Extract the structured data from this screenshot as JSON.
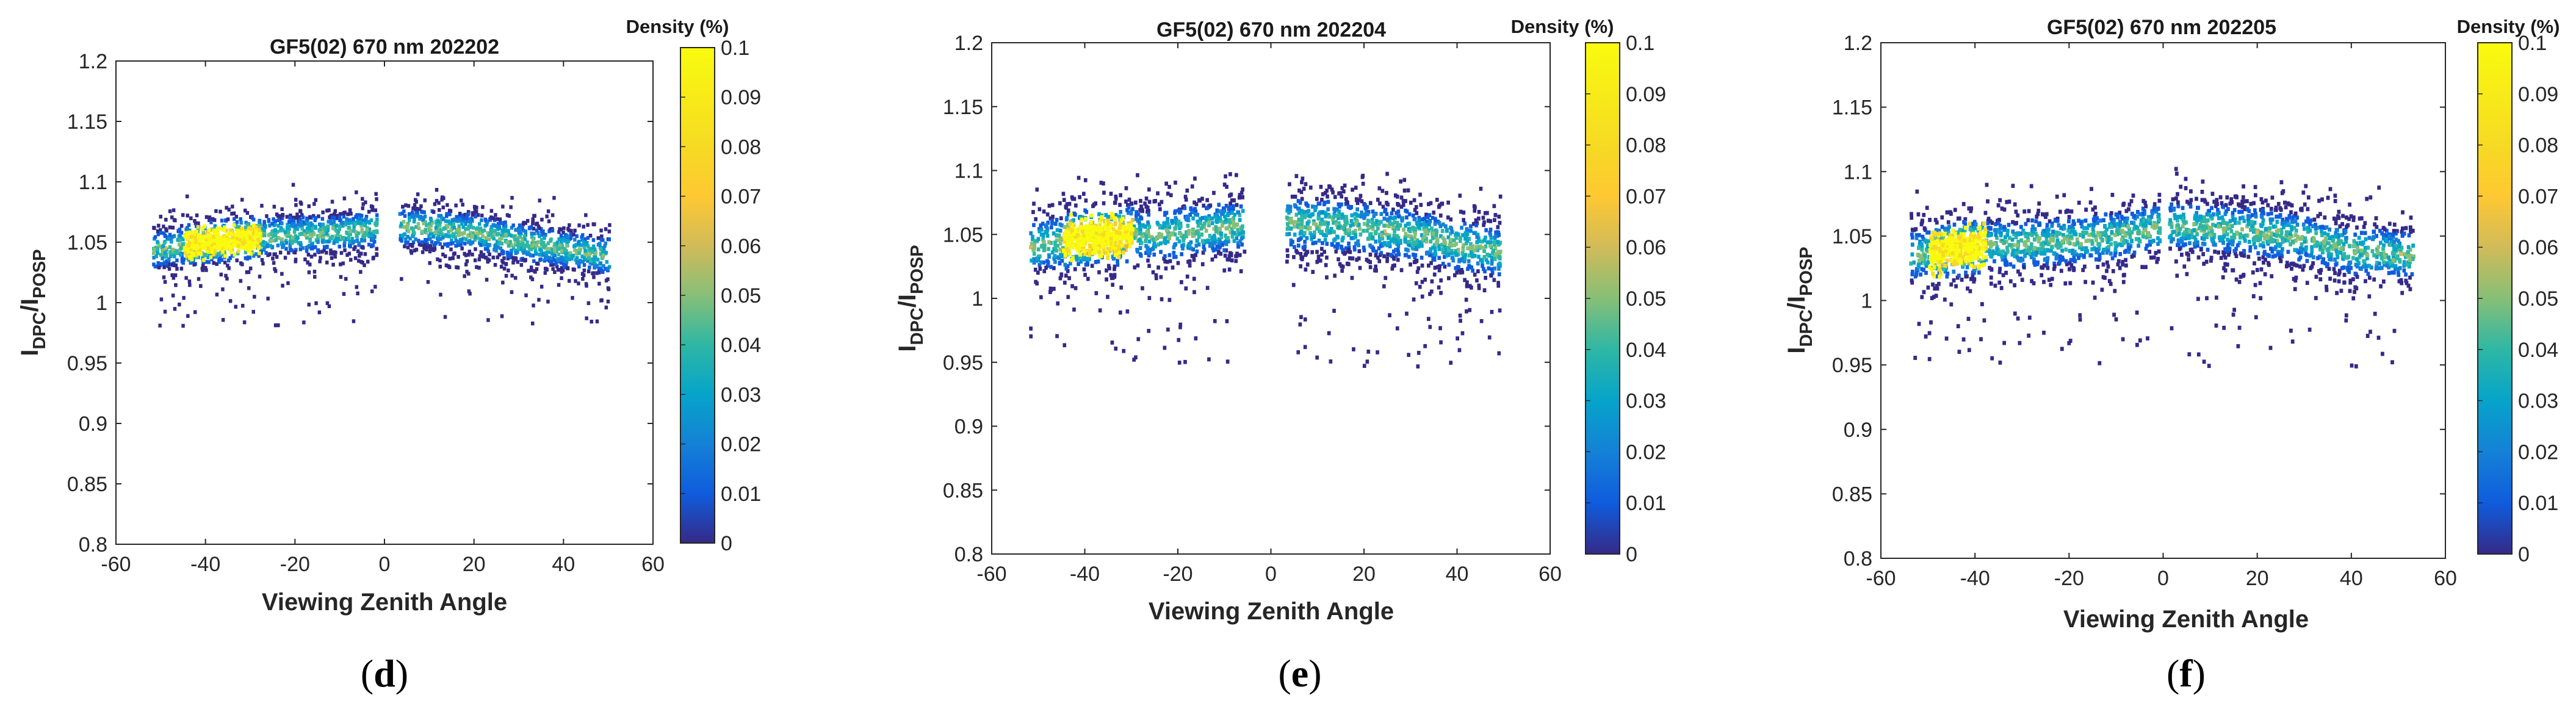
{
  "chart_data": [
    {
      "type": "heatmap",
      "panel": "d",
      "title": "GF5(02) 670 nm 202202",
      "xlabel": "Viewing Zenith Angle",
      "ylabel_main": "I",
      "ylabel_sub1": "DPC",
      "ylabel_sep": "/I",
      "ylabel_sub2": "POSP",
      "xlim": [
        -60,
        60
      ],
      "ylim": [
        0.8,
        1.2
      ],
      "xticks": [
        "-60",
        "-40",
        "-20",
        "0",
        "20",
        "40",
        "60"
      ],
      "yticks": [
        "0.8",
        "0.85",
        "0.9",
        "0.95",
        "1",
        "1.05",
        "1.1",
        "1.15",
        "1.2"
      ],
      "colorbar": {
        "title": "Density (%)",
        "range": [
          0,
          0.1
        ],
        "ticks": [
          "0",
          "0.01",
          "0.02",
          "0.03",
          "0.04",
          "0.05",
          "0.06",
          "0.07",
          "0.08",
          "0.09",
          "0.1"
        ]
      },
      "distribution": {
        "x_range": [
          -52,
          50
        ],
        "gap": [
          -2,
          3
        ],
        "center": [
          [
            -52,
            1.043
          ],
          [
            -40,
            1.05
          ],
          [
            -25,
            1.055
          ],
          [
            -10,
            1.058
          ],
          [
            0,
            1.063
          ],
          [
            10,
            1.062
          ],
          [
            20,
            1.058
          ],
          [
            30,
            1.05
          ],
          [
            40,
            1.044
          ],
          [
            50,
            1.038
          ]
        ],
        "spread": 0.013,
        "hot_x": [
          -45,
          -28
        ],
        "low_outlier_min": 0.98,
        "high_outlier_max": 1.09
      }
    },
    {
      "type": "heatmap",
      "panel": "e",
      "title": "GF5(02) 670 nm 202204",
      "xlabel": "Viewing Zenith Angle",
      "ylabel_main": "I",
      "ylabel_sub1": "DPC",
      "ylabel_sep": "/I",
      "ylabel_sub2": "POSP",
      "xlim": [
        -60,
        60
      ],
      "ylim": [
        0.8,
        1.2
      ],
      "xticks": [
        "-60",
        "-40",
        "-20",
        "0",
        "20",
        "40",
        "60"
      ],
      "yticks": [
        "0.8",
        "0.85",
        "0.9",
        "0.95",
        "1",
        "1.05",
        "1.1",
        "1.15",
        "1.2"
      ],
      "colorbar": {
        "title": "Density (%)",
        "range": [
          0,
          0.1
        ],
        "ticks": [
          "0",
          "0.01",
          "0.02",
          "0.03",
          "0.04",
          "0.05",
          "0.06",
          "0.07",
          "0.08",
          "0.09",
          "0.1"
        ]
      },
      "distribution": {
        "x_range": [
          -52,
          49
        ],
        "gap": [
          -6,
          3
        ],
        "center": [
          [
            -52,
            1.04
          ],
          [
            -40,
            1.048
          ],
          [
            -25,
            1.05
          ],
          [
            -10,
            1.055
          ],
          [
            0,
            1.06
          ],
          [
            10,
            1.058
          ],
          [
            20,
            1.055
          ],
          [
            30,
            1.05
          ],
          [
            40,
            1.042
          ],
          [
            49,
            1.036
          ]
        ],
        "spread": 0.017,
        "hot_x": [
          -45,
          -30
        ],
        "low_outlier_min": 0.945,
        "high_outlier_max": 1.095
      }
    },
    {
      "type": "heatmap",
      "panel": "f",
      "title": "GF5(02) 670 nm 202205",
      "xlabel": "Viewing Zenith Angle",
      "ylabel_main": "I",
      "ylabel_sub1": "DPC",
      "ylabel_sep": "/I",
      "ylabel_sub2": "POSP",
      "xlim": [
        -60,
        60
      ],
      "ylim": [
        0.8,
        1.2
      ],
      "xticks": [
        "-60",
        "-40",
        "-20",
        "0",
        "20",
        "40",
        "60"
      ],
      "yticks": [
        "0.8",
        "0.85",
        "0.9",
        "0.95",
        "1",
        "1.05",
        "1.1",
        "1.15",
        "1.2"
      ],
      "colorbar": {
        "title": "Density (%)",
        "range": [
          0,
          0.1
        ],
        "ticks": [
          "0",
          "0.01",
          "0.02",
          "0.03",
          "0.04",
          "0.05",
          "0.06",
          "0.07",
          "0.08",
          "0.09",
          "0.1"
        ]
      },
      "distribution": {
        "x_range": [
          -54,
          53
        ],
        "gap": [
          -1,
          1
        ],
        "center": [
          [
            -54,
            1.035
          ],
          [
            -40,
            1.042
          ],
          [
            -25,
            1.045
          ],
          [
            -10,
            1.05
          ],
          [
            0,
            1.058
          ],
          [
            15,
            1.055
          ],
          [
            30,
            1.048
          ],
          [
            40,
            1.038
          ],
          [
            53,
            1.035
          ]
        ],
        "spread": 0.016,
        "hot_x": [
          -50,
          -38
        ],
        "low_outlier_min": 0.948,
        "high_outlier_max": 1.1
      }
    }
  ]
}
